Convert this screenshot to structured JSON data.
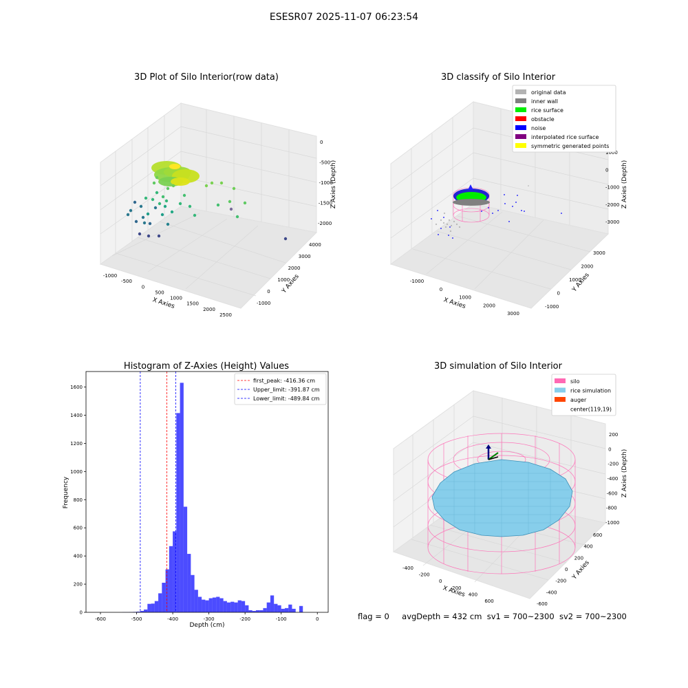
{
  "suptitle": "ESESR07 2025-11-07 06:23:54",
  "status": {
    "flag": "flag = 0",
    "avg": "avgDepth = 432 cm",
    "sv1": "sv1 = 700~2300",
    "sv2": "sv2 = 700~2300"
  },
  "panels": {
    "raw": {
      "title": "3D Plot of Silo Interior(row data)",
      "xlabel": "X Axies",
      "ylabel": "Y Axies",
      "zlabel": "Z Axies (Depth)",
      "xticks": [
        "-1000",
        "-500",
        "0",
        "500",
        "1000",
        "1500",
        "2000",
        "2500"
      ],
      "yticks": [
        "-1000",
        "0",
        "1000",
        "2000",
        "3000",
        "4000"
      ],
      "zticks": [
        "0",
        "-500",
        "-1000",
        "-1500",
        "-2000"
      ]
    },
    "classify": {
      "title": "3D classify of Silo Interior",
      "xlabel": "X Axies",
      "ylabel": "Y Axies",
      "zlabel": "Z Axies (Depth)",
      "xticks": [
        "-1000",
        "0",
        "1000",
        "2000",
        "3000"
      ],
      "yticks": [
        "-1000",
        "0",
        "1000",
        "2000",
        "3000"
      ],
      "zticks": [
        "1000",
        "0",
        "-1000",
        "-2000",
        "-3000"
      ],
      "legend": [
        {
          "label": "original data",
          "color": "#b3b3b3"
        },
        {
          "label": "inner wall",
          "color": "#808080"
        },
        {
          "label": "rice surface",
          "color": "#00ee00"
        },
        {
          "label": "obstacle",
          "color": "#ff0000"
        },
        {
          "label": "noise",
          "color": "#0000ff"
        },
        {
          "label": "interpolated rice surface",
          "color": "#800080"
        },
        {
          "label": "symmetric generated points",
          "color": "#ffff00"
        }
      ]
    },
    "simulation": {
      "title": "3D simulation of Silo Interior",
      "xlabel": "X Axies",
      "ylabel": "Y Axies",
      "zlabel": "Z Axies (Depth)",
      "xticks": [
        "-400",
        "-200",
        "0",
        "200",
        "400",
        "600"
      ],
      "yticks": [
        "-600",
        "-400",
        "-200",
        "0",
        "200",
        "400",
        "600"
      ],
      "zticks": [
        "200",
        "0",
        "-200",
        "-400",
        "-600",
        "-800",
        "-1000"
      ],
      "legend": [
        {
          "label": "silo",
          "color": "#ff69b4"
        },
        {
          "label": "rice simulation",
          "color": "#87ceeb"
        },
        {
          "label": "auger",
          "color": "#ff4500"
        },
        {
          "label": "center(119,19)",
          "color": "none"
        }
      ]
    }
  },
  "chart_data": {
    "type": "bar",
    "title": "Histogram of Z-Axies (Height) Values",
    "xlabel": "Depth (cm)",
    "ylabel": "Frequency",
    "xlim": [
      -640,
      30
    ],
    "ylim": [
      0,
      1710
    ],
    "xticks": [
      -600,
      -500,
      -400,
      -300,
      -200,
      -100,
      0
    ],
    "yticks": [
      0,
      200,
      400,
      600,
      800,
      1000,
      1200,
      1400,
      1600
    ],
    "bar_color": "#0000ff",
    "bin_width": 10,
    "bins_start": [
      -600,
      -590,
      -580,
      -570,
      -560,
      -550,
      -540,
      -530,
      -520,
      -510,
      -500,
      -490,
      -480,
      -470,
      -460,
      -450,
      -440,
      -430,
      -420,
      -410,
      -400,
      -390,
      -380,
      -370,
      -360,
      -350,
      -340,
      -330,
      -320,
      -310,
      -300,
      -290,
      -280,
      -270,
      -260,
      -250,
      -240,
      -230,
      -220,
      -210,
      -200,
      -190,
      -180,
      -170,
      -160,
      -150,
      -140,
      -130,
      -120,
      -110,
      -100,
      -90,
      -80,
      -70,
      -60,
      -50,
      -40,
      -30,
      -20,
      -10,
      0
    ],
    "values": [
      1,
      1,
      2,
      3,
      5,
      10,
      20,
      60,
      62,
      80,
      135,
      210,
      305,
      470,
      575,
      1415,
      1630,
      750,
      415,
      265,
      160,
      110,
      90,
      85,
      100,
      105,
      110,
      100,
      80,
      70,
      75,
      70,
      85,
      80,
      50,
      15,
      10,
      15,
      15,
      30,
      70,
      120,
      60,
      50,
      25,
      30,
      55,
      25,
      0,
      45
    ],
    "values_bin_start": -540,
    "lines": [
      {
        "label": "first_peak: -416.36 cm",
        "x": -416.36,
        "color": "#ff0000"
      },
      {
        "label": "Upper_limit: -391.87 cm",
        "x": -391.87,
        "color": "#0000ff"
      },
      {
        "label": "Lower_limit: -489.84 cm",
        "x": -489.84,
        "color": "#0000ff"
      }
    ],
    "legend_position": "top-right"
  }
}
